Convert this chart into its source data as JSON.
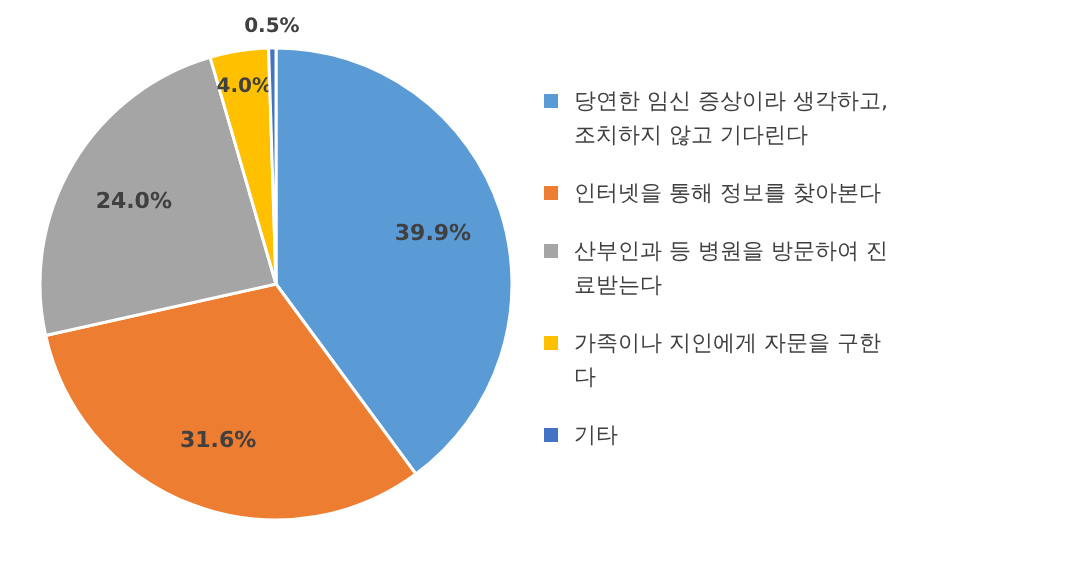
{
  "chart_data": {
    "type": "pie",
    "categories": [
      "당연한 임신 증상이라 생각하고, 조치하지 않고 기다린다",
      "인터넷을 통해 정보를 찾아본다",
      "산부인과 등 병원을 방문하여 진료받는다",
      "가족이나 지인에게 자문을 구한다",
      "기타"
    ],
    "values": [
      39.9,
      31.6,
      24.0,
      4.0,
      0.5
    ],
    "colors": [
      "#5b9bd5",
      "#ed7d31",
      "#a5a5a5",
      "#ffc000",
      "#4472c4"
    ],
    "value_labels": [
      "39.9%",
      "31.6%",
      "24.0%",
      "4.0%",
      "0.5%"
    ],
    "legend": "right"
  }
}
